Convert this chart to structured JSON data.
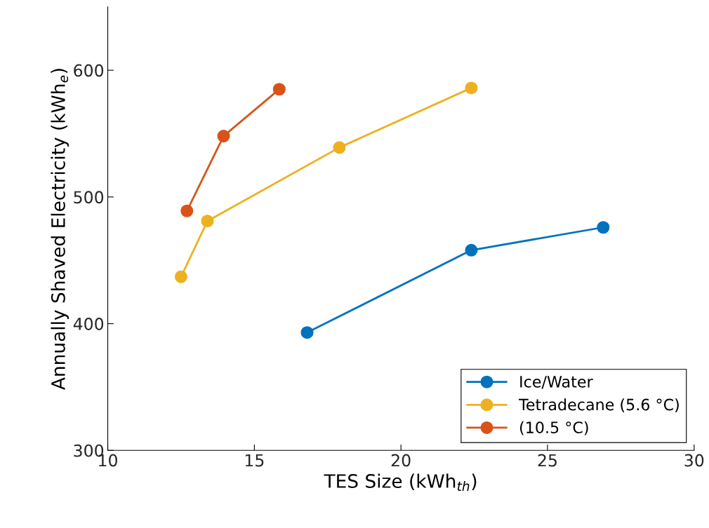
{
  "chart_data": {
    "type": "line",
    "xlabel": "TES Size (kWh$_{th}$)",
    "ylabel": "Annually Shaved Electricity (kWh$_{e}$)",
    "xlim": [
      10,
      30
    ],
    "xticks": [
      10,
      15,
      20,
      25,
      30
    ],
    "ylim": [
      300,
      650
    ],
    "yticks": [
      300,
      400,
      500,
      600
    ],
    "marker": "circle",
    "line_style": "solid",
    "grid": false,
    "legend": "bottom right",
    "series": [
      {
        "name": "Ice/Water",
        "color": "#0072bd",
        "x": [
          16.8,
          22.4,
          26.9
        ],
        "values": [
          393,
          458,
          476
        ]
      },
      {
        "name": "Tetradecane (5.6 °C)",
        "color": "#edb120",
        "x": [
          12.5,
          13.4,
          17.9,
          22.4
        ],
        "values": [
          437,
          481,
          539,
          586
        ]
      },
      {
        "name": "(10.5 °C)",
        "color": "#d95319",
        "x": [
          12.7,
          13.95,
          15.85
        ],
        "values": [
          489,
          548,
          585
        ]
      }
    ]
  }
}
